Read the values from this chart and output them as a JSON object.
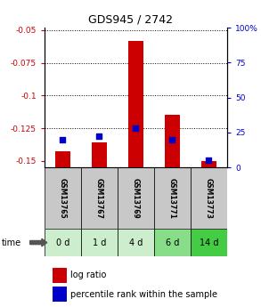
{
  "title": "GDS945 / 2742",
  "samples": [
    "GSM13765",
    "GSM13767",
    "GSM13769",
    "GSM13771",
    "GSM13773"
  ],
  "time_labels": [
    "0 d",
    "1 d",
    "4 d",
    "6 d",
    "14 d"
  ],
  "log_ratio": [
    -0.143,
    -0.136,
    -0.058,
    -0.115,
    -0.15
  ],
  "percentile_rank": [
    20,
    22,
    28,
    20,
    5
  ],
  "ylim_left": [
    -0.155,
    -0.048
  ],
  "ylim_right": [
    0,
    100
  ],
  "yticks_left": [
    -0.15,
    -0.125,
    -0.1,
    -0.075,
    -0.05
  ],
  "yticks_right": [
    0,
    25,
    50,
    75,
    100
  ],
  "bar_color": "#cc0000",
  "dot_color": "#0000cc",
  "bg_color_samples": "#c8c8c8",
  "green_colors": [
    "#cceecc",
    "#cceecc",
    "#cceecc",
    "#88dd88",
    "#44cc44"
  ],
  "left_tick_color": "#cc0000",
  "right_tick_color": "#0000cc",
  "legend_log": "log ratio",
  "legend_pct": "percentile rank within the sample",
  "title_fontsize": 9
}
